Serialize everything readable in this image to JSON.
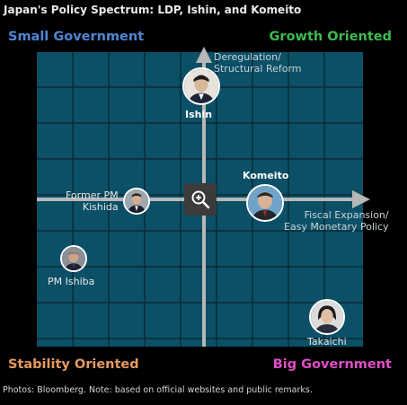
{
  "title": "Japan's Policy Spectrum: LDP, Ishin, and Komeito",
  "corners": {
    "top_left": "Small Government",
    "top_right": "Growth Oriented",
    "bottom_left": "Stability Oriented",
    "bottom_right": "Big Government"
  },
  "axes": {
    "up": [
      "Deregulation/",
      "Structural Reform"
    ],
    "right": [
      "Fiscal Expansion/",
      "Easy Monetary Policy"
    ]
  },
  "parties": {
    "ishin": "Ishin",
    "komeito": "Komeito"
  },
  "people": {
    "kishida": [
      "Former PM",
      "Kishida"
    ],
    "ishiba": "PM Ishiba",
    "takaichi": "Takaichi"
  },
  "footer": "Photos: Bloomberg. Note: based on official websites and public remarks.",
  "colors": {
    "grid_bg": "#0b5066",
    "grid_line": "#0a2a36",
    "axis": "#b7b7b7",
    "small_government": "#4e86d6",
    "growth_oriented": "#3dbb4f",
    "stability_oriented": "#e59a5f",
    "big_government": "#e04dc7"
  },
  "icons": {
    "zoom": "zoom-in-icon"
  }
}
